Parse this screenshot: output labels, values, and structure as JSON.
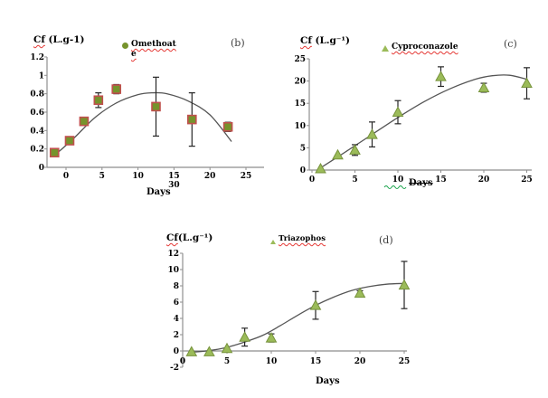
{
  "colors": {
    "square_fill": "#76932c",
    "square_stroke": "#c0504d",
    "triangle_fill": "#9bbb59",
    "triangle_stroke": "#77933c",
    "curve": "#555555",
    "axis": "#8e8e8e",
    "error_bar": "#262626",
    "squiggle_red": "#e53935",
    "squiggle_green": "#18a34a"
  },
  "chart_data": [
    {
      "id": "b",
      "type": "scatter-fit",
      "panel_label": "(b)",
      "title_prefix": "Cf",
      "title_suffix": " (L.g-1)",
      "series_name": "Omethoate",
      "legend_lines": [
        "Omethoat",
        "e"
      ],
      "legend_marker": "circle",
      "marker": "square",
      "xlabel": "Days",
      "stray_x_label": "30",
      "stray_below_tick": 15,
      "x_ticks": [
        0,
        5,
        10,
        15,
        20,
        25
      ],
      "y_ticks": [
        0,
        0.2,
        0.4,
        0.6,
        0.8,
        1,
        1.2
      ],
      "y_tick_labels": [
        "0",
        "0.2",
        "0.4",
        "0.6",
        "0.8",
        "1",
        "1.2"
      ],
      "xlim": [
        -2.6,
        27.5
      ],
      "ylim": [
        0,
        1.2
      ],
      "points": [
        {
          "x": -1.6,
          "y": 0.16,
          "err": 0
        },
        {
          "x": 0.5,
          "y": 0.29,
          "err": 0
        },
        {
          "x": 2.5,
          "y": 0.5,
          "err": 0
        },
        {
          "x": 4.5,
          "y": 0.73,
          "err": 0.08
        },
        {
          "x": 7,
          "y": 0.85,
          "err": 0.05
        },
        {
          "x": 12.5,
          "y": 0.66,
          "err": 0.32
        },
        {
          "x": 17.5,
          "y": 0.52,
          "err": 0.29
        },
        {
          "x": 22.5,
          "y": 0.44,
          "err": 0.05
        }
      ],
      "fit_curve": [
        [
          -1.6,
          0.13
        ],
        [
          1,
          0.31
        ],
        [
          4,
          0.54
        ],
        [
          7,
          0.7
        ],
        [
          10,
          0.79
        ],
        [
          12,
          0.81
        ],
        [
          14,
          0.8
        ],
        [
          17,
          0.72
        ],
        [
          20,
          0.57
        ],
        [
          23,
          0.28
        ]
      ]
    },
    {
      "id": "c",
      "type": "scatter-fit",
      "panel_label": "(c)",
      "title_prefix": "Cf",
      "title_suffix": " (L.g⁻¹)",
      "series_name": "Cyproconazole",
      "legend_lines": [
        "Cyproconazole"
      ],
      "legend_marker": "triangle",
      "marker": "triangle",
      "xlabel": "Days",
      "xlabel_strike": true,
      "xlabel_squiggle": true,
      "x_ticks": [
        0,
        5,
        10,
        15,
        20,
        25
      ],
      "y_ticks": [
        0,
        5,
        10,
        15,
        20,
        25
      ],
      "y_tick_labels": [
        "0",
        "5",
        "10",
        "15",
        "20",
        "25"
      ],
      "xlim": [
        -0.3,
        25.6
      ],
      "ylim": [
        0,
        25
      ],
      "points": [
        {
          "x": 1,
          "y": 0.3,
          "err": 0
        },
        {
          "x": 3,
          "y": 3.4,
          "err": 0
        },
        {
          "x": 5,
          "y": 4.5,
          "err": 1.2
        },
        {
          "x": 7,
          "y": 8.0,
          "err": 2.8
        },
        {
          "x": 10,
          "y": 13.0,
          "err": 2.6
        },
        {
          "x": 15,
          "y": 21.0,
          "err": 2.2
        },
        {
          "x": 20,
          "y": 18.5,
          "err": 1.0
        },
        {
          "x": 25,
          "y": 19.5,
          "err": 3.5
        }
      ],
      "fit_curve": [
        [
          1,
          0.5
        ],
        [
          4,
          4.2
        ],
        [
          7,
          8.0
        ],
        [
          10,
          11.8
        ],
        [
          13,
          15.3
        ],
        [
          16,
          18.2
        ],
        [
          19,
          20.4
        ],
        [
          21,
          21.2
        ],
        [
          23,
          21.3
        ],
        [
          25,
          20.4
        ]
      ]
    },
    {
      "id": "d",
      "type": "scatter-fit",
      "panel_label": "(d)",
      "title_prefix": "Cf",
      "title_suffix": "(L.g⁻¹)",
      "series_name": "Triazophos",
      "legend_lines": [
        "Triazophos"
      ],
      "legend_marker": "triangle-small",
      "marker": "triangle",
      "xlabel": "Days",
      "x_ticks": [
        0,
        5,
        10,
        15,
        20,
        25
      ],
      "y_ticks": [
        -2,
        0,
        2,
        4,
        6,
        8,
        10,
        12
      ],
      "y_tick_labels": [
        "-2",
        "0",
        "2",
        "4",
        "6",
        "8",
        "10",
        "12"
      ],
      "xlim": [
        0,
        25.3
      ],
      "ylim": [
        -2,
        12
      ],
      "points": [
        {
          "x": 1,
          "y": -0.1,
          "err": 0
        },
        {
          "x": 3,
          "y": -0.1,
          "err": 0
        },
        {
          "x": 5,
          "y": 0.3,
          "err": 0
        },
        {
          "x": 7,
          "y": 1.7,
          "err": 1.1
        },
        {
          "x": 10,
          "y": 1.6,
          "err": 0.5
        },
        {
          "x": 15,
          "y": 5.6,
          "err": 1.7
        },
        {
          "x": 20,
          "y": 7.1,
          "err": 0.3
        },
        {
          "x": 25,
          "y": 8.1,
          "err": 2.9
        }
      ],
      "fit_curve": [
        [
          1,
          -0.15
        ],
        [
          3,
          0.05
        ],
        [
          5,
          0.45
        ],
        [
          7,
          1.1
        ],
        [
          9,
          1.9
        ],
        [
          11,
          3.1
        ],
        [
          13,
          4.4
        ],
        [
          15,
          5.6
        ],
        [
          17,
          6.6
        ],
        [
          19,
          7.4
        ],
        [
          21,
          7.9
        ],
        [
          23,
          8.2
        ],
        [
          25,
          8.3
        ]
      ]
    }
  ]
}
